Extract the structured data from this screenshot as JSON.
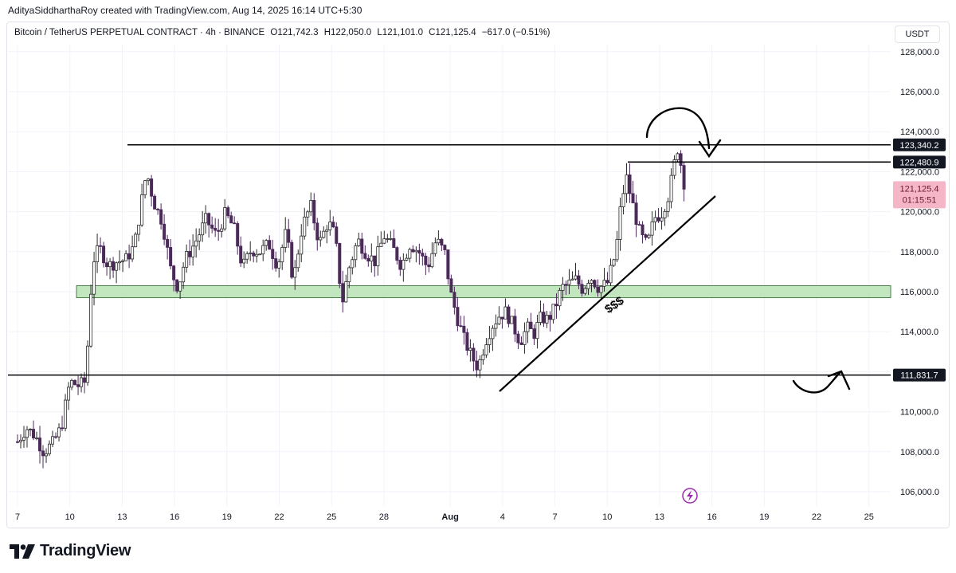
{
  "credit": "AdityaSiddharthaRoy created with TradingView.com, Aug 14, 2025 16:14 UTC+5:30",
  "symbol_info": {
    "name": "Bitcoin / TetherUS PERPETUAL CONTRACT · 4h · BINANCE",
    "open": "O121,742.3",
    "high": "H122,050.0",
    "low": "L121,101.0",
    "close": "C121,125.4",
    "change": "−617.0 (−0.51%)"
  },
  "currency": "USDT",
  "brand": "TradingView",
  "colors": {
    "up": "#2a2a2a",
    "down": "#4b2a5a",
    "zone_fill": "#b7e3b4",
    "zone_stroke": "#4a7d4a",
    "last_price_bg": "#f5b7c7",
    "last_price_text": "#6b1a2e",
    "tag_bg": "#131722",
    "lightning": "#9c27b0"
  },
  "chart_data": {
    "type": "candlestick",
    "timeframe": "4h",
    "ylim": [
      105000,
      129000
    ],
    "y_ticks": [
      106000,
      108000,
      110000,
      112000,
      114000,
      116000,
      118000,
      120000,
      122000,
      124000,
      126000,
      128000
    ],
    "y_tick_labels": [
      "106,000.0",
      "108,000.0",
      "110,000.0",
      "112,000.0",
      "114,000.0",
      "116,000.0",
      "118,000.0",
      "120,000.0",
      "122,000.0",
      "124,000.0",
      "126,000.0",
      "128,000.0"
    ],
    "x_ticks": [
      {
        "label": "7",
        "day": 0
      },
      {
        "label": "10",
        "day": 3
      },
      {
        "label": "13",
        "day": 6
      },
      {
        "label": "16",
        "day": 9
      },
      {
        "label": "19",
        "day": 12
      },
      {
        "label": "22",
        "day": 15
      },
      {
        "label": "25",
        "day": 18
      },
      {
        "label": "28",
        "day": 21
      },
      {
        "label": "Aug",
        "day": 24.8
      },
      {
        "label": "4",
        "day": 27.8
      },
      {
        "label": "7",
        "day": 30.8
      },
      {
        "label": "10",
        "day": 33.8
      },
      {
        "label": "13",
        "day": 36.8
      },
      {
        "label": "16",
        "day": 39.8
      },
      {
        "label": "19",
        "day": 42.8
      },
      {
        "label": "22",
        "day": 45.8
      },
      {
        "label": "25",
        "day": 48.8
      }
    ],
    "path_points": [
      [
        0,
        108500
      ],
      [
        0.5,
        109200
      ],
      [
        1.0,
        108800
      ],
      [
        1.5,
        108000
      ],
      [
        2.0,
        108400
      ],
      [
        2.5,
        109200
      ],
      [
        3.0,
        111500
      ],
      [
        3.5,
        111300
      ],
      [
        3.9,
        111500
      ],
      [
        4.3,
        117500
      ],
      [
        4.7,
        118200
      ],
      [
        5.2,
        117300
      ],
      [
        5.7,
        117500
      ],
      [
        6.2,
        117600
      ],
      [
        6.7,
        118300
      ],
      [
        7.2,
        121000
      ],
      [
        7.4,
        122000
      ],
      [
        7.8,
        120500
      ],
      [
        8.3,
        119500
      ],
      [
        8.8,
        117000
      ],
      [
        9.2,
        116200
      ],
      [
        9.6,
        117600
      ],
      [
        10.2,
        118500
      ],
      [
        10.8,
        119600
      ],
      [
        11.4,
        118800
      ],
      [
        11.9,
        119900
      ],
      [
        12.4,
        119200
      ],
      [
        12.9,
        117200
      ],
      [
        13.4,
        118100
      ],
      [
        13.9,
        118000
      ],
      [
        14.4,
        118400
      ],
      [
        14.9,
        117300
      ],
      [
        15.4,
        119000
      ],
      [
        15.8,
        116500
      ],
      [
        16.3,
        119200
      ],
      [
        16.8,
        120300
      ],
      [
        17.3,
        118400
      ],
      [
        17.8,
        119500
      ],
      [
        18.2,
        118800
      ],
      [
        18.6,
        115400
      ],
      [
        19.0,
        117200
      ],
      [
        19.5,
        118600
      ],
      [
        20.0,
        117900
      ],
      [
        20.5,
        117500
      ],
      [
        21.0,
        118800
      ],
      [
        21.5,
        118200
      ],
      [
        22.0,
        117300
      ],
      [
        22.5,
        118400
      ],
      [
        23.0,
        118000
      ],
      [
        23.5,
        117200
      ],
      [
        24.0,
        118600
      ],
      [
        24.5,
        117900
      ],
      [
        24.8,
        116000
      ],
      [
        25.2,
        114700
      ],
      [
        25.6,
        113600
      ],
      [
        26.0,
        112800
      ],
      [
        26.4,
        112200
      ],
      [
        26.8,
        113500
      ],
      [
        27.2,
        114300
      ],
      [
        27.6,
        114800
      ],
      [
        28.0,
        115000
      ],
      [
        28.4,
        114300
      ],
      [
        28.8,
        113500
      ],
      [
        29.2,
        114200
      ],
      [
        29.6,
        113900
      ],
      [
        30.0,
        114700
      ],
      [
        30.4,
        114600
      ],
      [
        30.8,
        115200
      ],
      [
        31.2,
        116200
      ],
      [
        31.6,
        116400
      ],
      [
        32.0,
        116600
      ],
      [
        32.4,
        116100
      ],
      [
        32.8,
        116800
      ],
      [
        33.3,
        116200
      ],
      [
        33.8,
        116400
      ],
      [
        34.3,
        118000
      ],
      [
        34.6,
        120500
      ],
      [
        34.9,
        121700
      ],
      [
        35.3,
        120200
      ],
      [
        35.7,
        118800
      ],
      [
        36.1,
        118300
      ],
      [
        36.5,
        119700
      ],
      [
        36.9,
        119900
      ],
      [
        37.3,
        120800
      ],
      [
        37.6,
        122100
      ],
      [
        37.8,
        123300
      ],
      [
        38.0,
        122500
      ],
      [
        38.2,
        121125.4
      ]
    ],
    "candle_count": 210,
    "key_levels": [
      {
        "value": 123340.2,
        "label": "123,340.2"
      },
      {
        "value": 122480.9,
        "label": "122,480.9"
      },
      {
        "value": 111831.7,
        "label": "111,831.7"
      }
    ],
    "last_price": {
      "value": 121125.4,
      "label": "121,125.4",
      "countdown": "01:15:51"
    },
    "demand_zone": {
      "from": 115700,
      "to": 116300
    },
    "trendline": {
      "from": [
        29.0,
        111000
      ],
      "to": [
        40.0,
        120800
      ]
    },
    "annotation": "$$$",
    "grid": true
  }
}
